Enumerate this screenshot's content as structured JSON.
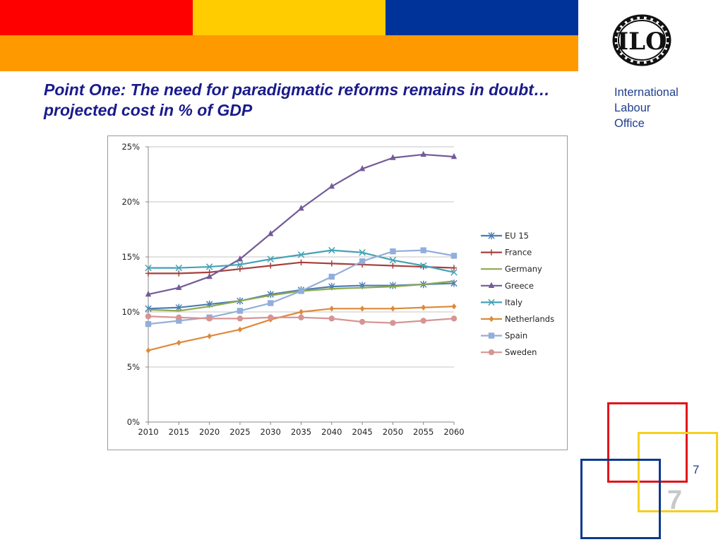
{
  "slide": {
    "title": "Point One: The need for paradigmatic reforms remains in doubt…projected cost in % of GDP",
    "org_lines": [
      "International",
      "Labour",
      "Office"
    ],
    "page_number": "7",
    "logo_text": "ILO"
  },
  "colors": {
    "bar_red": "#ff0000",
    "bar_yellow": "#ffcc00",
    "bar_blue": "#003399",
    "bar_orange": "#ff9900",
    "square_red": "#e0151b",
    "square_yellow": "#f5d020",
    "square_blue": "#0d3a8c"
  },
  "chart_data": {
    "type": "line",
    "title": "",
    "xlabel": "",
    "ylabel": "",
    "x": [
      "2010",
      "2015",
      "2020",
      "2025",
      "2030",
      "2035",
      "2040",
      "2045",
      "2050",
      "2055",
      "2060"
    ],
    "ylim": [
      0,
      25
    ],
    "yticks": [
      "0%",
      "5%",
      "10%",
      "15%",
      "20%",
      "25%"
    ],
    "grid": true,
    "legend_position": "right",
    "series": [
      {
        "name": "EU 15",
        "color": "#4a7eb5",
        "marker": "star",
        "values": [
          10.3,
          10.4,
          10.7,
          11.0,
          11.6,
          12.0,
          12.3,
          12.4,
          12.4,
          12.5,
          12.6
        ]
      },
      {
        "name": "France",
        "color": "#a6403c",
        "marker": "plus",
        "values": [
          13.5,
          13.5,
          13.6,
          13.9,
          14.2,
          14.5,
          14.4,
          14.3,
          14.2,
          14.1,
          14.0
        ]
      },
      {
        "name": "Germany",
        "color": "#8eaa4e",
        "marker": "none",
        "values": [
          10.2,
          10.1,
          10.5,
          11.0,
          11.5,
          11.9,
          12.1,
          12.2,
          12.3,
          12.5,
          12.8
        ]
      },
      {
        "name": "Greece",
        "color": "#735a98",
        "marker": "triangle",
        "values": [
          11.6,
          12.2,
          13.2,
          14.8,
          17.1,
          19.4,
          21.4,
          23.0,
          24.0,
          24.3,
          24.1
        ]
      },
      {
        "name": "Italy",
        "color": "#44a2b6",
        "marker": "x",
        "values": [
          14.0,
          14.0,
          14.1,
          14.3,
          14.8,
          15.2,
          15.6,
          15.4,
          14.7,
          14.2,
          13.6
        ]
      },
      {
        "name": "Netherlands",
        "color": "#dd8a3a",
        "marker": "diamond",
        "values": [
          6.5,
          7.2,
          7.8,
          8.4,
          9.3,
          10.0,
          10.3,
          10.3,
          10.3,
          10.4,
          10.5
        ]
      },
      {
        "name": "Spain",
        "color": "#92aedb",
        "marker": "square",
        "values": [
          8.9,
          9.2,
          9.5,
          10.1,
          10.8,
          11.9,
          13.2,
          14.6,
          15.5,
          15.6,
          15.1
        ]
      },
      {
        "name": "Sweden",
        "color": "#d69494",
        "marker": "circle",
        "values": [
          9.6,
          9.5,
          9.4,
          9.4,
          9.5,
          9.5,
          9.4,
          9.1,
          9.0,
          9.2,
          9.4
        ]
      }
    ]
  }
}
